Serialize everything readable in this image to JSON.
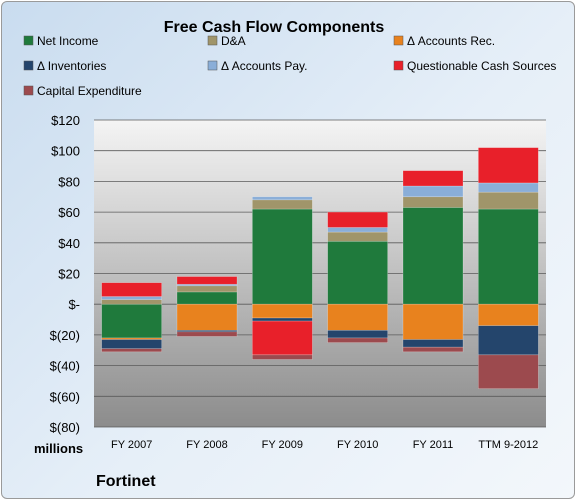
{
  "chart_data": {
    "type": "bar",
    "stacked": true,
    "title": "Free Cash Flow Components",
    "units_label": "millions",
    "company": "Fortinet",
    "categories": [
      "FY 2007",
      "FY 2008",
      "FY 2009",
      "FY 2010",
      "FY 2011",
      "TTM 9-2012"
    ],
    "ylim": [
      -80,
      120
    ],
    "yticks": [
      120,
      100,
      80,
      60,
      40,
      20,
      0,
      -20,
      -40,
      -60,
      -80
    ],
    "ytick_labels": [
      "$120",
      "$100",
      "$80",
      "$60",
      "$40",
      "$20",
      "$-",
      "$(20)",
      "$(40)",
      "$(60)",
      "$(80)"
    ],
    "grid": true,
    "legend_position": "top",
    "series": [
      {
        "name": "Net Income",
        "color": "#1f7a3c",
        "values": [
          -22,
          8,
          62,
          41,
          63,
          62
        ]
      },
      {
        "name": "D&A",
        "color": "#a0956a",
        "values": [
          3,
          4,
          6,
          6,
          7,
          11
        ]
      },
      {
        "name": "Δ Accounts Rec.",
        "color": "#e8821e",
        "values": [
          -1,
          -17,
          -9,
          -17,
          -23,
          -14
        ]
      },
      {
        "name": "Δ Inventories",
        "color": "#24456c",
        "values": [
          -6,
          -1,
          -2,
          -5,
          -5,
          -19
        ]
      },
      {
        "name": "Δ Accounts Pay.",
        "color": "#8aaed8",
        "values": [
          2,
          1,
          2,
          3,
          7,
          6
        ]
      },
      {
        "name": "Questionable Cash Sources",
        "color": "#e8202a",
        "values": [
          9,
          5,
          -22,
          10,
          10,
          23
        ]
      },
      {
        "name": "Capital Expenditure",
        "color": "#9c4a4e",
        "values": [
          -2,
          -3,
          -3,
          -3,
          -3,
          -22
        ]
      }
    ]
  }
}
